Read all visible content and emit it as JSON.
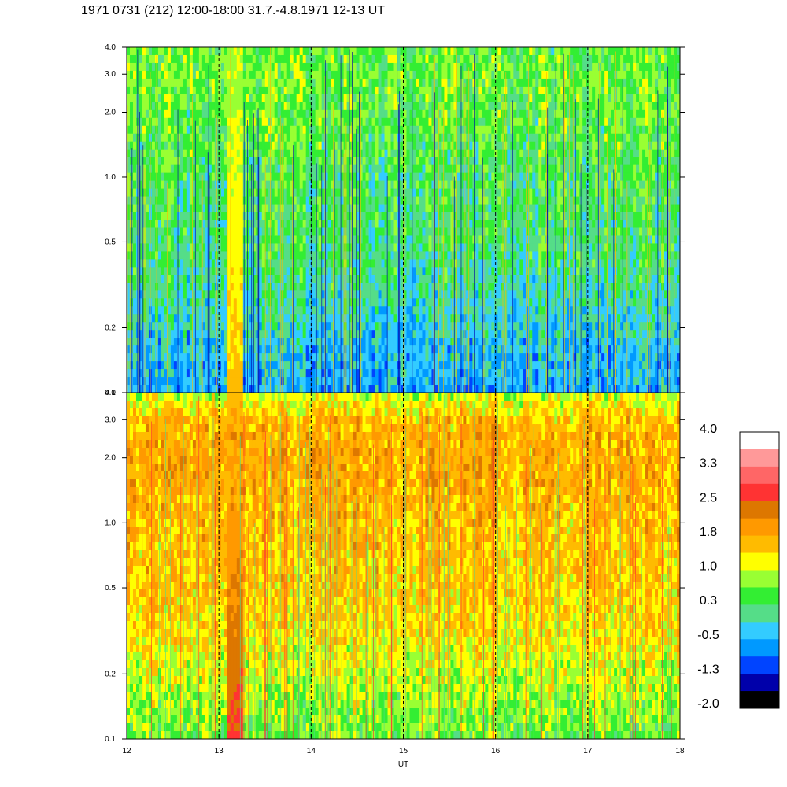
{
  "title": "1971 0731 (212) 12:00-18:00 31.7.-4.8.1971  12-13 UT",
  "chart_data": [
    {
      "type": "heatmap",
      "panel": "upper",
      "x_range": [
        12,
        18
      ],
      "y_scale": "log",
      "y_range": [
        0.1,
        4.0
      ],
      "y_ticks": [
        "0.1",
        "0.2",
        "0.5",
        "1.0",
        "2.0",
        "3.0",
        "4.0"
      ],
      "x_ticks": [
        "12",
        "13",
        "14",
        "15",
        "16",
        "17",
        "18"
      ],
      "hour_markers": [
        13,
        14,
        15,
        16,
        17
      ],
      "approx_level_profile": {
        "y": [
          0.1,
          0.15,
          0.2,
          0.3,
          0.5,
          1.0,
          2.0,
          3.0,
          4.0
        ],
        "level": [
          -0.6,
          -0.4,
          -0.2,
          0.0,
          0.2,
          0.3,
          0.5,
          0.6,
          0.5
        ]
      },
      "event": {
        "x": [
          13.1,
          13.25
        ],
        "peak_level": 1.5
      }
    },
    {
      "type": "heatmap",
      "panel": "lower",
      "x_range": [
        12,
        18
      ],
      "y_scale": "log",
      "y_range": [
        0.1,
        4.0
      ],
      "y_ticks": [
        "0.1",
        "0.2",
        "0.5",
        "1.0",
        "2.0",
        "3.0",
        "4.0"
      ],
      "x_ticks": [
        "12",
        "13",
        "14",
        "15",
        "16",
        "17",
        "18"
      ],
      "xlabel": "UT",
      "hour_markers": [
        13,
        14,
        15,
        16,
        17
      ],
      "approx_level_profile": {
        "y": [
          0.1,
          0.15,
          0.2,
          0.3,
          0.5,
          1.0,
          2.0,
          3.0,
          4.0
        ],
        "level": [
          0.6,
          0.8,
          1.0,
          1.3,
          1.5,
          1.6,
          1.8,
          1.6,
          0.9
        ]
      },
      "event": {
        "x": [
          13.1,
          13.25
        ],
        "peak_level": 2.6
      }
    }
  ],
  "colorbar": {
    "labels": [
      "4.0",
      "3.3",
      "2.5",
      "1.8",
      "1.0",
      "0.3",
      "-0.5",
      "-1.3",
      "-2.0"
    ],
    "colors": [
      "#ffffff",
      "#ff9999",
      "#ff6666",
      "#ff3333",
      "#dd7700",
      "#ff9900",
      "#ffbb00",
      "#ffff00",
      "#99ff33",
      "#33ee33",
      "#55dd88",
      "#33ccff",
      "#0099ff",
      "#0044ff",
      "#0000aa",
      "#000000"
    ]
  }
}
